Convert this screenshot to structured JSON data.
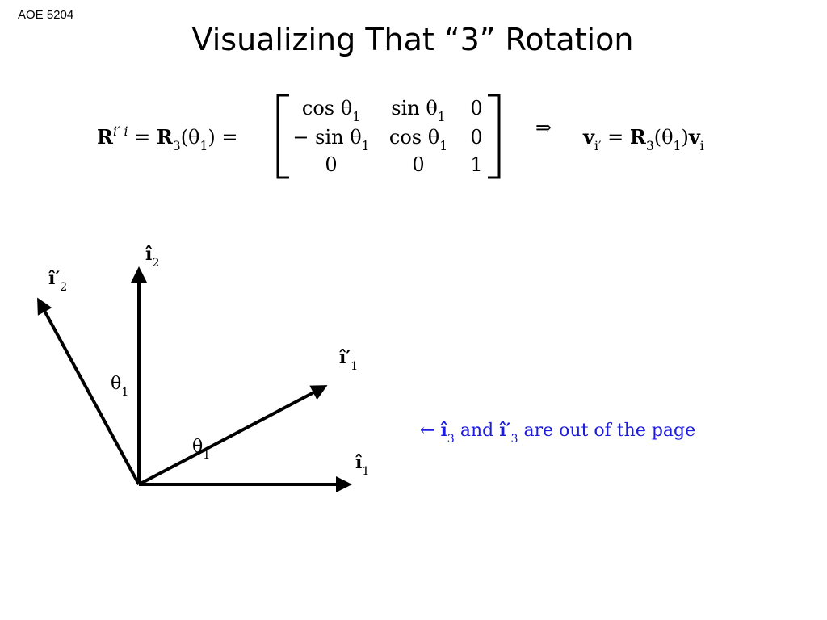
{
  "header": {
    "course": "AOE 5204",
    "title": "Visualizing That “3” Rotation"
  },
  "equation": {
    "lhs": [
      {
        "text": "R",
        "bold": true,
        "sup": "i′ i"
      },
      {
        "text": " = "
      },
      {
        "text": "R",
        "bold": true,
        "sub": "3"
      },
      {
        "text": "(θ",
        "sub": "1"
      },
      {
        "text": ") ="
      }
    ],
    "matrix": [
      [
        {
          "text": "cos θ",
          "sub": "1"
        },
        {
          "text": "sin θ",
          "sub": "1"
        },
        {
          "text": "0"
        }
      ],
      [
        {
          "text": "− sin θ",
          "sub": "1"
        },
        {
          "text": "cos θ",
          "sub": "1"
        },
        {
          "text": "0"
        }
      ],
      [
        {
          "text": "0"
        },
        {
          "text": "0"
        },
        {
          "text": "1"
        }
      ]
    ],
    "implies": "⇒",
    "rhs": [
      {
        "text": "v",
        "bold": true,
        "sub": "i′"
      },
      {
        "text": " = "
      },
      {
        "text": "R",
        "bold": true,
        "sub": "3"
      },
      {
        "text": "(θ",
        "sub": "1"
      },
      {
        "text": ")"
      },
      {
        "text": "v",
        "bold": true,
        "sub": "i"
      }
    ]
  },
  "diagram": {
    "i2": [
      {
        "text": "î",
        "bold": true,
        "sub": "2"
      }
    ],
    "i2_prime": [
      {
        "text": "î′",
        "bold": true,
        "sub": "2"
      }
    ],
    "i1_prime": [
      {
        "text": "î′",
        "bold": true,
        "sub": "1"
      }
    ],
    "i1": [
      {
        "text": "î",
        "bold": true,
        "sub": "1"
      }
    ],
    "theta_upper": [
      {
        "text": "θ",
        "sub": "1"
      }
    ],
    "theta_lower": [
      {
        "text": "θ",
        "sub": "1"
      }
    ]
  },
  "note": [
    {
      "text": "← "
    },
    {
      "text": "î",
      "bold": true,
      "sub": "3"
    },
    {
      "text": " and "
    },
    {
      "text": "î′",
      "bold": true,
      "sub": "3"
    },
    {
      "text": " are out of the page"
    }
  ]
}
